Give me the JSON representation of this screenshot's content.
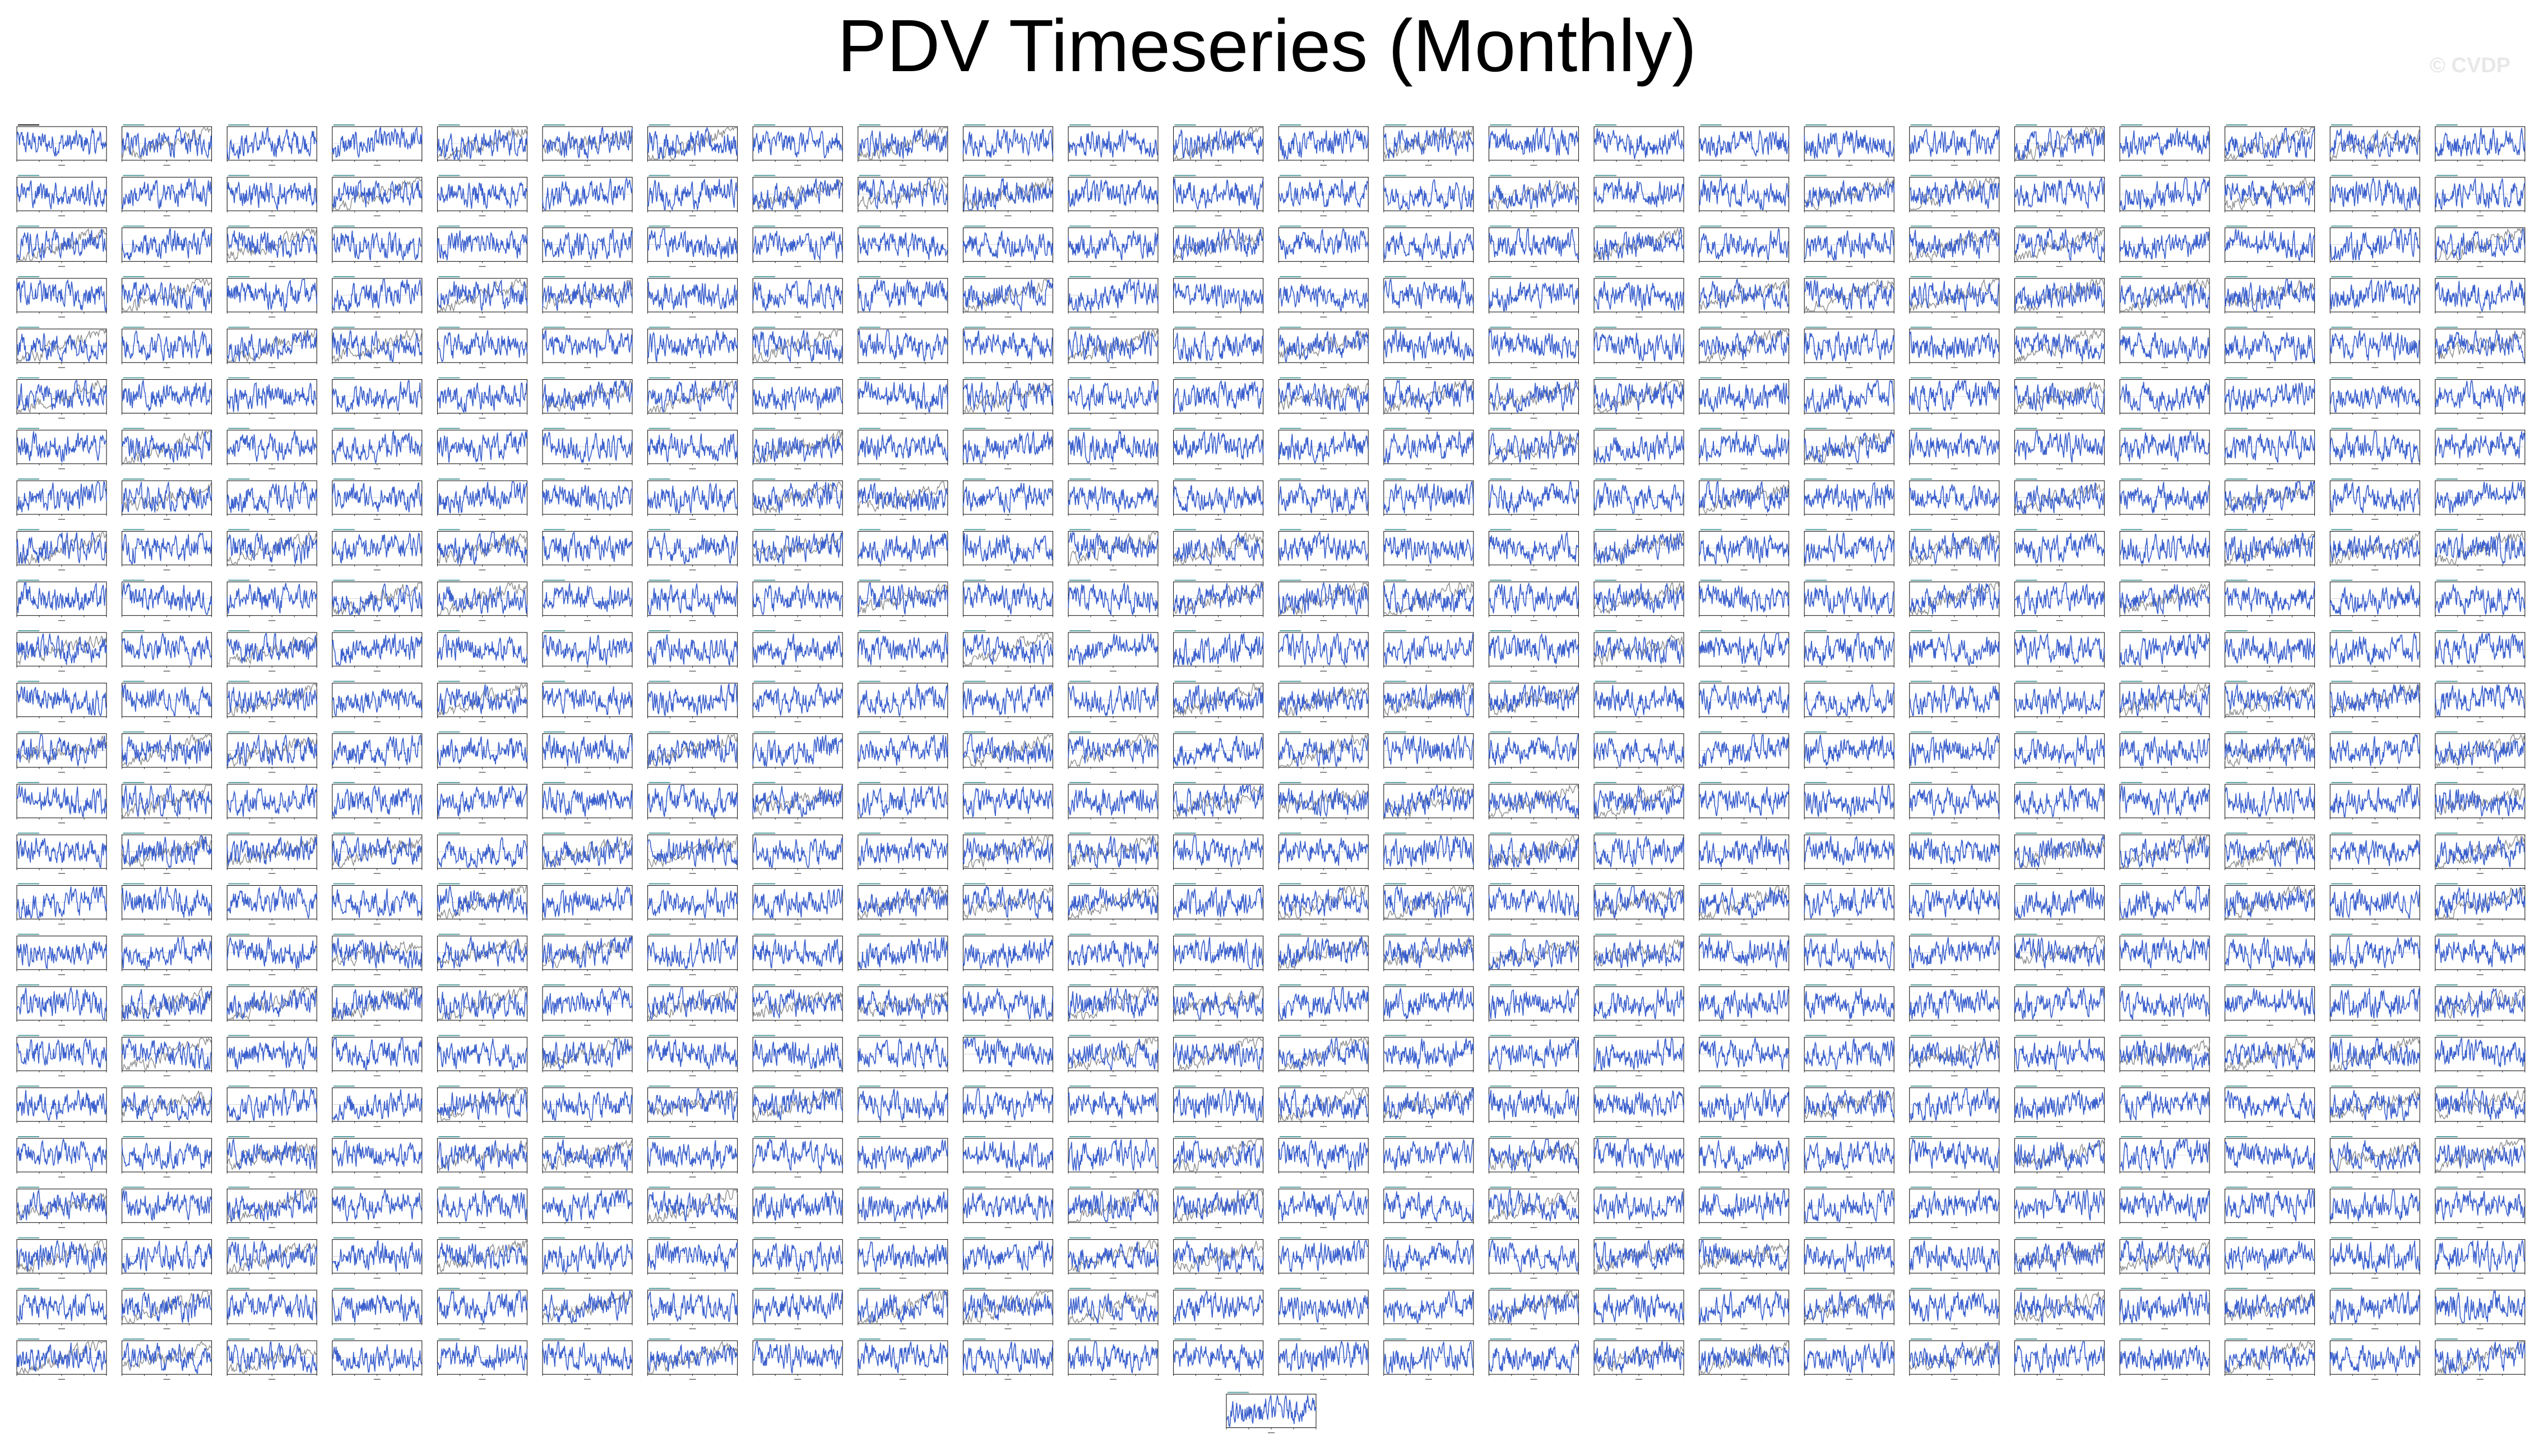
{
  "page": {
    "title": "PDV Timeseries (Monthly)",
    "watermark": "© CVDP"
  },
  "chart_data": {
    "type": "line",
    "title": "PDV Timeseries (Monthly)",
    "layout": "small-multiples",
    "panel_rows": 25,
    "panel_cols": 24,
    "extra_panel_count": 1,
    "panel_count": 601,
    "xlabel": "Year",
    "legend": "none",
    "series": [
      {
        "name": "",
        "color": "#3a5fcd",
        "role": "member-timeseries"
      },
      {
        "name": "",
        "color": "#8c8c8c",
        "role": "reference-timeseries"
      }
    ],
    "colors": {
      "primary": "#3a5fcd",
      "reference": "#8c8c8c",
      "axis": "#000000"
    }
  }
}
